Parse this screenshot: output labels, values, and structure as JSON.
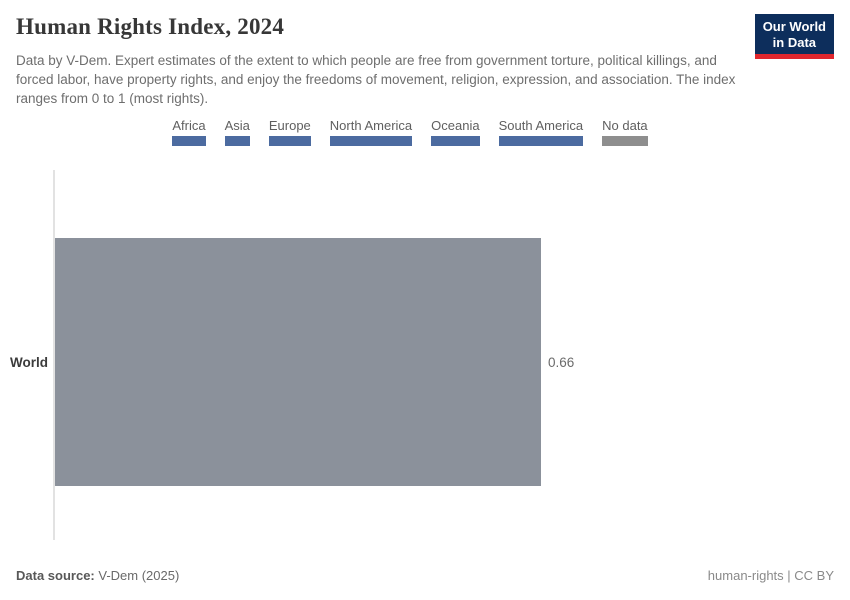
{
  "header": {
    "title": "Human Rights Index, 2024",
    "subtitle": "Data by V-Dem. Expert estimates of the extent to which people are free from government torture, political killings, and forced labor, have property rights, and enjoy the freedoms of movement, religion, expression, and association. The index ranges from 0 to 1 (most rights).",
    "logo": {
      "line1": "Our World",
      "line2": "in Data",
      "bg_color": "#0d2e5c",
      "accent_color": "#e0262d"
    }
  },
  "legend": {
    "items": [
      {
        "label": "Africa",
        "color": "#4c6ba0"
      },
      {
        "label": "Asia",
        "color": "#4c6ba0"
      },
      {
        "label": "Europe",
        "color": "#4c6ba0"
      },
      {
        "label": "North America",
        "color": "#4c6ba0"
      },
      {
        "label": "Oceania",
        "color": "#4c6ba0"
      },
      {
        "label": "South America",
        "color": "#4c6ba0"
      },
      {
        "label": "No data",
        "color": "#8e8e8e"
      }
    ]
  },
  "chart_data": {
    "type": "bar",
    "orientation": "horizontal",
    "title": "Human Rights Index, 2024",
    "categories": [
      "World"
    ],
    "values": [
      0.66
    ],
    "value_labels": [
      "0.66"
    ],
    "xlim": [
      0,
      0.66
    ],
    "bar_color": "#8b919b",
    "grid": false,
    "legend_position": "top"
  },
  "footer": {
    "source_label": "Data source:",
    "source_value": "V-Dem (2025)",
    "credit": "human-rights | CC BY"
  }
}
